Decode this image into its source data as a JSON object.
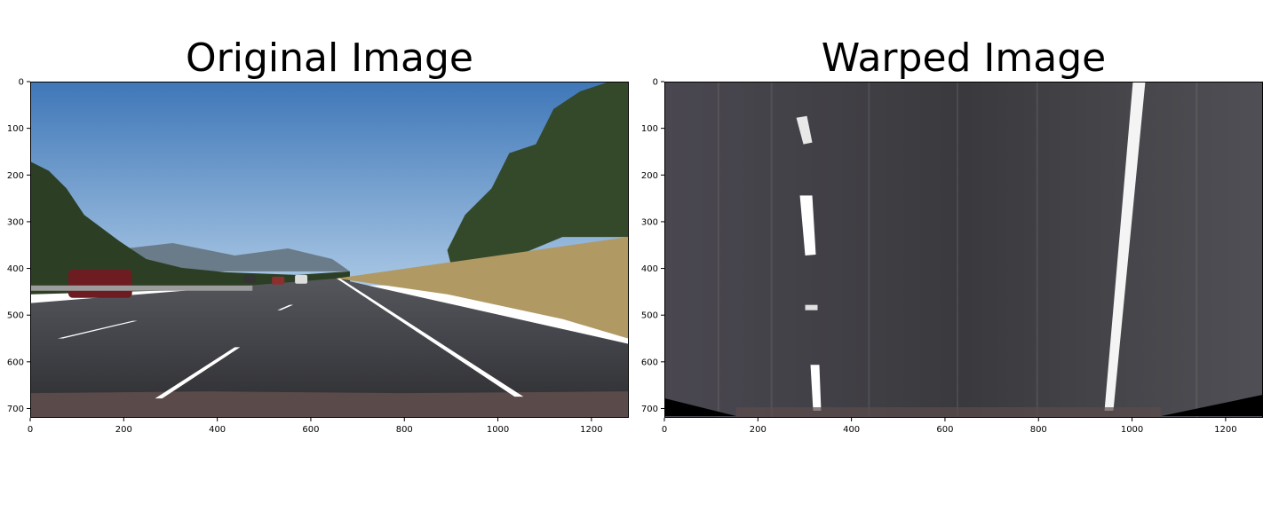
{
  "titles": {
    "left": "Original Image",
    "right": "Warped Image"
  },
  "axes": {
    "x_ticks": [
      "0",
      "200",
      "400",
      "600",
      "800",
      "1000",
      "1200"
    ],
    "y_ticks": [
      "0",
      "100",
      "200",
      "300",
      "400",
      "500",
      "600",
      "700"
    ],
    "x_range": [
      0,
      1280
    ],
    "y_range": [
      0,
      720
    ]
  },
  "colors": {
    "sky": "#4f86c6",
    "road": "#3c3c3f",
    "lane": "#ffffff",
    "trees": "#2f4326",
    "grass": "#b59a63"
  }
}
